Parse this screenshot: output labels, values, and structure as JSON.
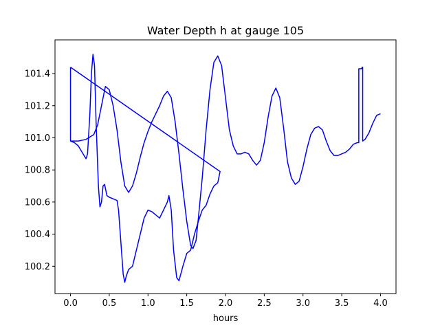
{
  "chart_data": {
    "type": "line",
    "title": "Water Depth h at gauge 105",
    "xlabel": "hours",
    "ylabel": "",
    "xlim": [
      -0.2,
      4.2
    ],
    "ylim": [
      100.03,
      101.61
    ],
    "x_ticks": [
      0.0,
      0.5,
      1.0,
      1.5,
      2.0,
      2.5,
      3.0,
      3.5,
      4.0
    ],
    "x_tick_labels": [
      "0.0",
      "0.5",
      "1.0",
      "1.5",
      "2.0",
      "2.5",
      "3.0",
      "3.5",
      "4.0"
    ],
    "y_ticks": [
      100.2,
      100.4,
      100.6,
      100.8,
      101.0,
      101.2,
      101.4
    ],
    "y_tick_labels": [
      "100.2",
      "100.4",
      "100.6",
      "100.8",
      "101.0",
      "101.2",
      "101.4"
    ],
    "grid": false,
    "legend": "none",
    "series": [
      {
        "color": "#0000ff",
        "points": [
          [
            0.0,
            101.44
          ],
          [
            0.0,
            100.98
          ],
          [
            0.05,
            100.97
          ],
          [
            0.1,
            100.95
          ],
          [
            0.15,
            100.91
          ],
          [
            0.2,
            100.87
          ],
          [
            0.22,
            100.9
          ],
          [
            0.25,
            101.15
          ],
          [
            0.27,
            101.4
          ],
          [
            0.29,
            101.52
          ],
          [
            0.31,
            101.45
          ],
          [
            0.33,
            101.1
          ],
          [
            0.36,
            100.7
          ],
          [
            0.38,
            100.57
          ],
          [
            0.4,
            100.6
          ],
          [
            0.42,
            100.7
          ],
          [
            0.44,
            100.71
          ],
          [
            0.47,
            100.64
          ],
          [
            0.5,
            100.63
          ],
          [
            0.55,
            100.62
          ],
          [
            0.6,
            100.61
          ],
          [
            0.62,
            100.55
          ],
          [
            0.65,
            100.35
          ],
          [
            0.68,
            100.15
          ],
          [
            0.7,
            100.1
          ],
          [
            0.72,
            100.14
          ],
          [
            0.75,
            100.18
          ],
          [
            0.8,
            100.2
          ],
          [
            0.85,
            100.3
          ],
          [
            0.9,
            100.4
          ],
          [
            0.95,
            100.5
          ],
          [
            1.0,
            100.55
          ],
          [
            1.05,
            100.54
          ],
          [
            1.1,
            100.52
          ],
          [
            1.15,
            100.5
          ],
          [
            1.2,
            100.55
          ],
          [
            1.25,
            100.6
          ],
          [
            1.27,
            100.64
          ],
          [
            1.3,
            100.55
          ],
          [
            1.33,
            100.3
          ],
          [
            1.37,
            100.13
          ],
          [
            1.4,
            100.11
          ],
          [
            1.45,
            100.2
          ],
          [
            1.5,
            100.28
          ],
          [
            1.55,
            100.3
          ],
          [
            1.6,
            100.4
          ],
          [
            1.65,
            100.48
          ],
          [
            1.7,
            100.55
          ],
          [
            1.75,
            100.58
          ],
          [
            1.8,
            100.65
          ],
          [
            1.85,
            100.7
          ],
          [
            1.9,
            100.72
          ],
          [
            1.93,
            100.79
          ],
          [
            0.0,
            101.44
          ]
        ]
      },
      {
        "color": "#0000ff",
        "points": [
          [
            0.0,
            100.98
          ],
          [
            0.1,
            100.98
          ],
          [
            0.2,
            100.99
          ],
          [
            0.3,
            101.02
          ],
          [
            0.35,
            101.08
          ],
          [
            0.4,
            101.2
          ],
          [
            0.45,
            101.32
          ],
          [
            0.5,
            101.3
          ],
          [
            0.55,
            101.2
          ],
          [
            0.6,
            101.05
          ],
          [
            0.65,
            100.85
          ],
          [
            0.7,
            100.7
          ],
          [
            0.75,
            100.66
          ],
          [
            0.8,
            100.7
          ],
          [
            0.85,
            100.78
          ],
          [
            0.9,
            100.88
          ],
          [
            0.95,
            100.97
          ],
          [
            1.0,
            101.04
          ],
          [
            1.05,
            101.1
          ],
          [
            1.1,
            101.15
          ],
          [
            1.15,
            101.2
          ],
          [
            1.2,
            101.26
          ],
          [
            1.25,
            101.29
          ],
          [
            1.3,
            101.25
          ],
          [
            1.35,
            101.1
          ],
          [
            1.4,
            100.9
          ],
          [
            1.45,
            100.68
          ],
          [
            1.5,
            100.48
          ],
          [
            1.55,
            100.33
          ],
          [
            1.58,
            100.31
          ],
          [
            1.62,
            100.36
          ],
          [
            1.65,
            100.5
          ],
          [
            1.7,
            100.75
          ],
          [
            1.75,
            101.05
          ],
          [
            1.8,
            101.3
          ],
          [
            1.85,
            101.47
          ],
          [
            1.9,
            101.51
          ],
          [
            1.95,
            101.45
          ],
          [
            2.0,
            101.25
          ],
          [
            2.05,
            101.05
          ],
          [
            2.1,
            100.95
          ],
          [
            2.15,
            100.9
          ],
          [
            2.2,
            100.9
          ],
          [
            2.25,
            100.91
          ],
          [
            2.3,
            100.9
          ],
          [
            2.35,
            100.86
          ],
          [
            2.4,
            100.83
          ],
          [
            2.45,
            100.86
          ],
          [
            2.5,
            100.97
          ],
          [
            2.55,
            101.13
          ],
          [
            2.6,
            101.26
          ],
          [
            2.65,
            101.31
          ],
          [
            2.7,
            101.25
          ],
          [
            2.75,
            101.06
          ],
          [
            2.8,
            100.85
          ],
          [
            2.85,
            100.75
          ],
          [
            2.9,
            100.71
          ],
          [
            2.95,
            100.73
          ],
          [
            3.0,
            100.82
          ],
          [
            3.05,
            100.93
          ],
          [
            3.1,
            101.02
          ],
          [
            3.15,
            101.06
          ],
          [
            3.2,
            101.07
          ],
          [
            3.25,
            101.05
          ],
          [
            3.3,
            100.98
          ],
          [
            3.35,
            100.92
          ],
          [
            3.4,
            100.89
          ],
          [
            3.45,
            100.89
          ],
          [
            3.5,
            100.9
          ],
          [
            3.55,
            100.91
          ],
          [
            3.6,
            100.93
          ],
          [
            3.65,
            100.96
          ],
          [
            3.7,
            100.97
          ],
          [
            3.72,
            100.97
          ],
          [
            3.72,
            101.43
          ],
          [
            3.75,
            101.43
          ],
          [
            3.77,
            101.44
          ],
          [
            3.77,
            100.98
          ],
          [
            3.8,
            100.99
          ],
          [
            3.85,
            101.03
          ],
          [
            3.9,
            101.09
          ],
          [
            3.95,
            101.14
          ],
          [
            4.0,
            101.15
          ]
        ]
      }
    ]
  }
}
